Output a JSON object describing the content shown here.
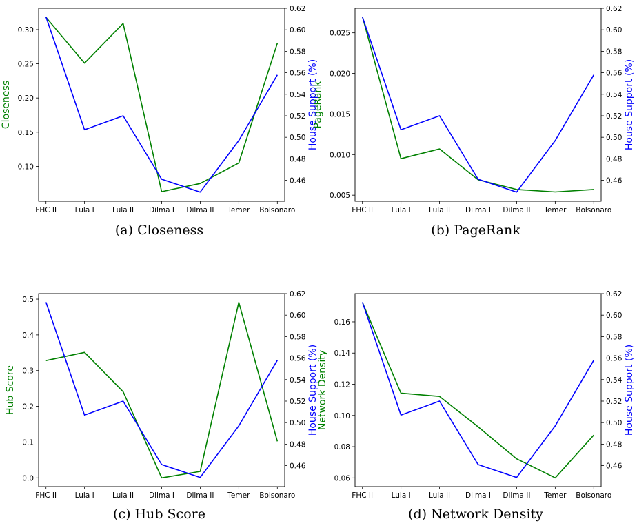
{
  "chart_data": [
    {
      "id": "a",
      "type": "line",
      "caption": "(a) Closeness",
      "categories": [
        "FHC II",
        "Lula I",
        "Lula II",
        "Dilma I",
        "Dilma II",
        "Temer",
        "Bolsonaro"
      ],
      "series": [
        {
          "name": "Closeness",
          "axis": "left",
          "color": "#008000",
          "values": [
            0.318,
            0.251,
            0.309,
            0.063,
            0.075,
            0.105,
            0.28
          ]
        },
        {
          "name": "House Support (%)",
          "axis": "right",
          "color": "#0000ff",
          "values": [
            0.612,
            0.507,
            0.52,
            0.461,
            0.449,
            0.497,
            0.558
          ]
        }
      ],
      "ylabel_left": "Closeness",
      "ylabel_right": "House Support (%)",
      "ylim_left": [
        0.049,
        0.3312
      ],
      "ylim_right": [
        0.4405,
        0.62
      ],
      "yticks_left": [
        "0.10",
        "0.15",
        "0.20",
        "0.25",
        "0.30"
      ],
      "yticks_right": [
        "0.46",
        "0.48",
        "0.50",
        "0.52",
        "0.54",
        "0.56",
        "0.58",
        "0.60",
        "0.62"
      ]
    },
    {
      "id": "b",
      "type": "line",
      "caption": "(b) PageRank",
      "categories": [
        "FHC II",
        "Lula I",
        "Lula II",
        "Dilma I",
        "Dilma II",
        "Temer",
        "Bolsonaro"
      ],
      "series": [
        {
          "name": "PageRank",
          "axis": "left",
          "color": "#008000",
          "values": [
            0.027,
            0.0095,
            0.0107,
            0.0069,
            0.0057,
            0.0054,
            0.0057
          ]
        },
        {
          "name": "House Support (%)",
          "axis": "right",
          "color": "#0000ff",
          "values": [
            0.612,
            0.507,
            0.52,
            0.461,
            0.449,
            0.497,
            0.558
          ]
        }
      ],
      "ylabel_left": "PageRank",
      "ylabel_right": "House Support (%)",
      "ylim_left": [
        0.00425,
        0.02803
      ],
      "ylim_right": [
        0.4405,
        0.62
      ],
      "yticks_left": [
        "0.005",
        "0.010",
        "0.015",
        "0.020",
        "0.025"
      ],
      "yticks_right": [
        "0.46",
        "0.48",
        "0.50",
        "0.52",
        "0.54",
        "0.56",
        "0.58",
        "0.60",
        "0.62"
      ]
    },
    {
      "id": "c",
      "type": "line",
      "caption": "(c) Hub Score",
      "categories": [
        "FHC II",
        "Lula I",
        "Lula II",
        "Dilma I",
        "Dilma II",
        "Temer",
        "Bolsonaro"
      ],
      "series": [
        {
          "name": "Hub Score",
          "axis": "left",
          "color": "#008000",
          "values": [
            0.328,
            0.351,
            0.241,
            0.0,
            0.018,
            0.491,
            0.102
          ]
        },
        {
          "name": "House Support (%)",
          "axis": "right",
          "color": "#0000ff",
          "values": [
            0.612,
            0.507,
            0.52,
            0.461,
            0.449,
            0.497,
            0.558
          ]
        }
      ],
      "ylabel_left": "Hub Score",
      "ylabel_right": "House Support (%)",
      "ylim_left": [
        -0.0245,
        0.5155
      ],
      "ylim_right": [
        0.4405,
        0.62
      ],
      "yticks_left": [
        "0.0",
        "0.1",
        "0.2",
        "0.3",
        "0.4",
        "0.5"
      ],
      "yticks_right": [
        "0.46",
        "0.48",
        "0.50",
        "0.52",
        "0.54",
        "0.56",
        "0.58",
        "0.60",
        "0.62"
      ]
    },
    {
      "id": "d",
      "type": "line",
      "caption": "(d) Network Density",
      "categories": [
        "FHC II",
        "Lula I",
        "Lula II",
        "Dilma I",
        "Dilma II",
        "Temer",
        "Bolsonaro"
      ],
      "series": [
        {
          "name": "Network Density",
          "axis": "left",
          "color": "#008000",
          "values": [
            0.1725,
            0.1143,
            0.1122,
            0.0927,
            0.0722,
            0.06,
            0.0874
          ]
        },
        {
          "name": "House Support (%)",
          "axis": "right",
          "color": "#0000ff",
          "values": [
            0.612,
            0.507,
            0.52,
            0.461,
            0.449,
            0.497,
            0.558
          ]
        }
      ],
      "ylabel_left": "Network Density",
      "ylabel_right": "House Support (%)",
      "ylim_left": [
        0.0544,
        0.1781
      ],
      "ylim_right": [
        0.4405,
        0.62
      ],
      "yticks_left": [
        "0.06",
        "0.08",
        "0.10",
        "0.12",
        "0.14",
        "0.16"
      ],
      "yticks_right": [
        "0.46",
        "0.48",
        "0.50",
        "0.52",
        "0.54",
        "0.56",
        "0.58",
        "0.60",
        "0.62"
      ]
    }
  ]
}
